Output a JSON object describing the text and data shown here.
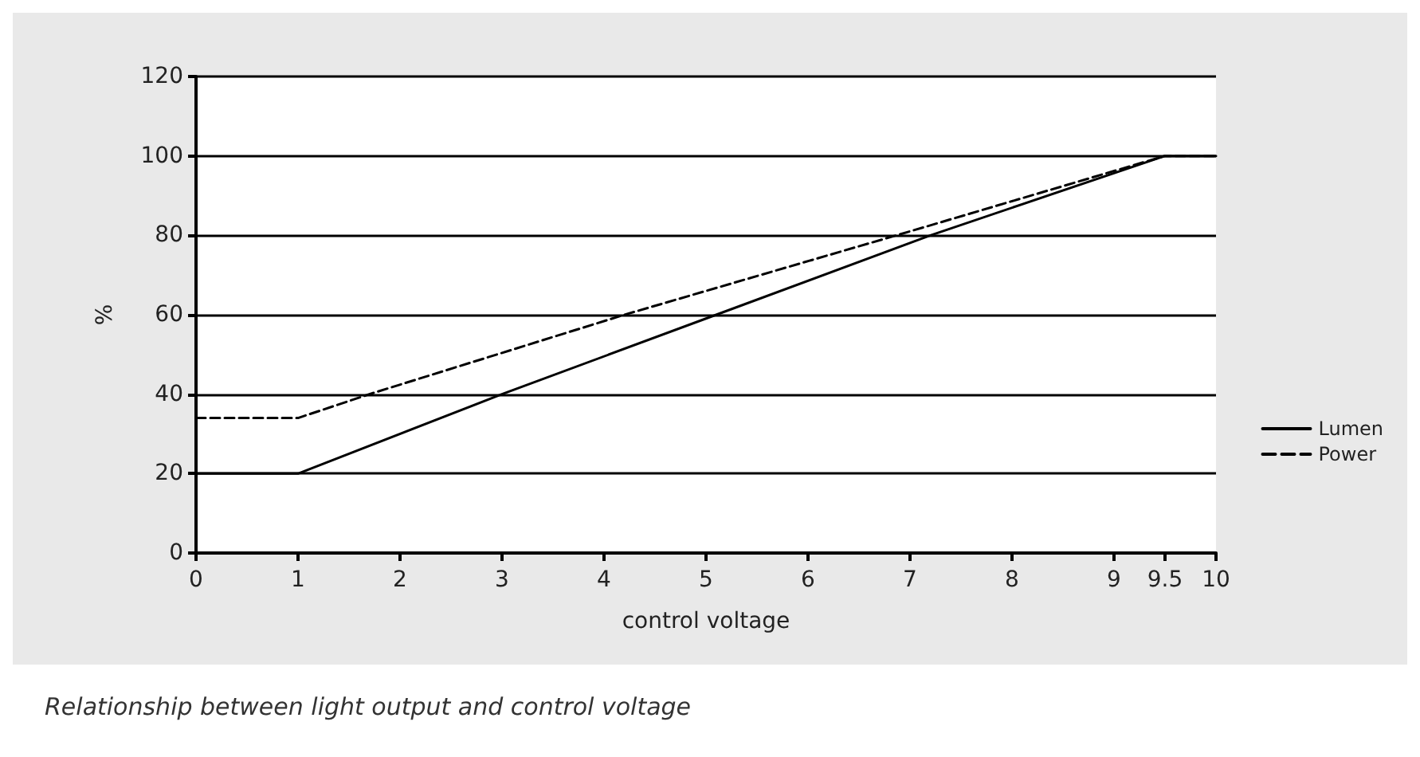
{
  "chart_data": {
    "type": "line",
    "xlabel": "control voltage",
    "ylabel": "%",
    "xlim": [
      0,
      10
    ],
    "xticks": [
      0,
      1,
      2,
      3,
      4,
      5,
      6,
      7,
      8,
      9,
      9.5,
      10
    ],
    "ylim": [
      0,
      120
    ],
    "yticks": [
      0,
      20,
      40,
      60,
      80,
      100,
      120
    ],
    "series": [
      {
        "name": "Lumen",
        "color": "#000000",
        "line_style": "solid",
        "x": [
          0,
          1,
          3,
          5.1,
          7.2,
          9.5,
          10
        ],
        "values": [
          20,
          20,
          40,
          60,
          80,
          100,
          100
        ]
      },
      {
        "name": "Power",
        "color": "#000000",
        "line_style": "dashed",
        "x": [
          0,
          1,
          1.7,
          4.2,
          7,
          9.5,
          10
        ],
        "values": [
          34,
          34,
          40,
          60,
          81,
          100,
          100
        ]
      }
    ],
    "grid": "y",
    "legend": "right",
    "marker": "none",
    "annotations": [
      "Relationship between light output and control voltage"
    ]
  }
}
